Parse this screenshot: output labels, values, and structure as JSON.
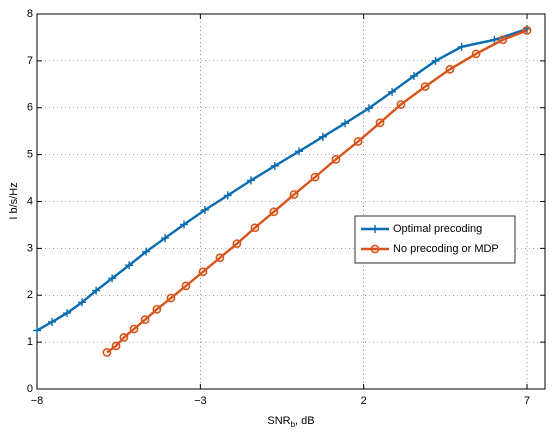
{
  "chart_data": {
    "type": "line",
    "x_label": {
      "main": "SNR",
      "sub": "b",
      "rest": ", dB"
    },
    "y_label": "I b/s/Hz",
    "xlim": [
      -8,
      7.55
    ],
    "ylim": [
      0,
      8
    ],
    "xticks": [
      {
        "value": -8,
        "label": "−8"
      },
      {
        "value": -3,
        "label": "−3"
      },
      2,
      7
    ],
    "yticks": [
      0,
      1,
      2,
      3,
      4,
      5,
      6,
      7,
      8
    ],
    "grid": true,
    "legend": "center right",
    "series": [
      {
        "name": "Optimal precoding",
        "color": "#0b6cb0",
        "marker": "plus",
        "x": [
          -8,
          -7.54,
          -7.08,
          -6.62,
          -6.19,
          -5.7,
          -5.18,
          -4.66,
          -4.08,
          -3.5,
          -2.86,
          -2.16,
          -1.45,
          -0.72,
          0.02,
          0.75,
          1.43,
          2.16,
          2.87,
          3.54,
          4.2,
          5.0,
          6.0,
          7.0
        ],
        "values": [
          1.25,
          1.43,
          1.62,
          1.85,
          2.1,
          2.36,
          2.64,
          2.93,
          3.22,
          3.51,
          3.82,
          4.13,
          4.45,
          4.76,
          5.07,
          5.38,
          5.67,
          5.99,
          6.34,
          6.68,
          7.0,
          7.3,
          7.45,
          7.68
        ]
      },
      {
        "name": "No precoding or MDP",
        "color": "#d9541a",
        "marker": "circle",
        "x": [
          -5.86,
          -5.58,
          -5.34,
          -5.03,
          -4.69,
          -4.33,
          -3.9,
          -3.44,
          -2.92,
          -2.4,
          -1.88,
          -1.33,
          -0.75,
          -0.13,
          0.51,
          1.15,
          1.83,
          2.5,
          3.14,
          3.88,
          4.64,
          5.44,
          6.26,
          7.0
        ],
        "values": [
          0.78,
          0.92,
          1.1,
          1.28,
          1.48,
          1.7,
          1.94,
          2.2,
          2.5,
          2.8,
          3.1,
          3.44,
          3.78,
          4.15,
          4.52,
          4.9,
          5.28,
          5.68,
          6.07,
          6.45,
          6.82,
          7.15,
          7.45,
          7.65
        ]
      }
    ]
  }
}
